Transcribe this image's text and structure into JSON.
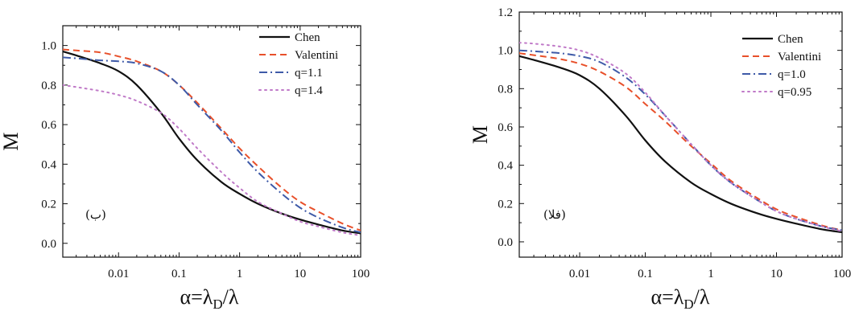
{
  "chart_data": [
    {
      "type": "line",
      "panel_label": "(ب)",
      "xscale": "log",
      "xlim": [
        0.0012,
        100
      ],
      "ylim": [
        -0.07,
        1.1
      ],
      "xticks": [
        {
          "value": 0.01,
          "label": "0.01"
        },
        {
          "value": 0.1,
          "label": "0.1"
        },
        {
          "value": 1,
          "label": "1"
        },
        {
          "value": 10,
          "label": "10"
        },
        {
          "value": 100,
          "label": "100"
        }
      ],
      "yticks": [
        {
          "value": 0.0,
          "label": "0.0"
        },
        {
          "value": 0.2,
          "label": "0.2"
        },
        {
          "value": 0.4,
          "label": "0.4"
        },
        {
          "value": 0.6,
          "label": "0.6"
        },
        {
          "value": 0.8,
          "label": "0.8"
        },
        {
          "value": 1.0,
          "label": "1.0"
        }
      ],
      "ylabel": "M",
      "xlabel": "α=λD/λ",
      "xlabel_main": "α=λ",
      "xlabel_sub": "D",
      "xlabel_tail": "/λ",
      "legend_position": "top-right",
      "series": [
        {
          "name": "Chen",
          "color": "#111111",
          "dash": "solid",
          "x": [
            0.0012,
            0.002,
            0.005,
            0.01,
            0.02,
            0.05,
            0.1,
            0.2,
            0.5,
            1,
            2,
            5,
            10,
            20,
            50,
            100
          ],
          "y": [
            0.97,
            0.95,
            0.91,
            0.87,
            0.8,
            0.66,
            0.53,
            0.42,
            0.31,
            0.25,
            0.2,
            0.15,
            0.12,
            0.095,
            0.065,
            0.05
          ]
        },
        {
          "name": "Valentini",
          "color": "#e8502a",
          "dash": "dashed",
          "x": [
            0.0012,
            0.002,
            0.005,
            0.01,
            0.02,
            0.05,
            0.1,
            0.2,
            0.5,
            1,
            2,
            5,
            10,
            20,
            50,
            100
          ],
          "y": [
            0.98,
            0.975,
            0.965,
            0.945,
            0.92,
            0.87,
            0.8,
            0.71,
            0.58,
            0.48,
            0.39,
            0.28,
            0.21,
            0.16,
            0.1,
            0.065
          ]
        },
        {
          "name": "q=1.1",
          "color": "#3e5aa8",
          "dash": "dashdot",
          "x": [
            0.0012,
            0.002,
            0.005,
            0.01,
            0.02,
            0.05,
            0.1,
            0.2,
            0.5,
            1,
            2,
            5,
            10,
            20,
            50,
            100
          ],
          "y": [
            0.94,
            0.935,
            0.925,
            0.92,
            0.91,
            0.87,
            0.8,
            0.7,
            0.57,
            0.46,
            0.36,
            0.25,
            0.18,
            0.13,
            0.08,
            0.055
          ]
        },
        {
          "name": "q=1.4",
          "color": "#c07ac8",
          "dash": "dotted",
          "x": [
            0.0012,
            0.002,
            0.005,
            0.01,
            0.02,
            0.05,
            0.1,
            0.2,
            0.5,
            1,
            2,
            5,
            10,
            20,
            50,
            100
          ],
          "y": [
            0.8,
            0.79,
            0.77,
            0.75,
            0.72,
            0.66,
            0.58,
            0.48,
            0.36,
            0.28,
            0.21,
            0.15,
            0.11,
            0.085,
            0.055,
            0.04
          ]
        }
      ]
    },
    {
      "type": "line",
      "panel_label": "(الف)",
      "xscale": "log",
      "xlim": [
        0.0012,
        100
      ],
      "ylim": [
        -0.08,
        1.2
      ],
      "xticks": [
        {
          "value": 0.01,
          "label": "0.01"
        },
        {
          "value": 0.1,
          "label": "0.1"
        },
        {
          "value": 1,
          "label": "1"
        },
        {
          "value": 10,
          "label": "10"
        },
        {
          "value": 100,
          "label": "100"
        }
      ],
      "yticks": [
        {
          "value": 0.0,
          "label": "0.0"
        },
        {
          "value": 0.2,
          "label": "0.2"
        },
        {
          "value": 0.4,
          "label": "0.4"
        },
        {
          "value": 0.6,
          "label": "0.6"
        },
        {
          "value": 0.8,
          "label": "0.8"
        },
        {
          "value": 1.0,
          "label": "1.0"
        },
        {
          "value": 1.2,
          "label": "1.2"
        }
      ],
      "ylabel": "M",
      "xlabel": "α=λD/λ",
      "xlabel_main": "α=λ",
      "xlabel_sub": "D",
      "xlabel_tail": "/λ",
      "legend_position": "top-right",
      "series": [
        {
          "name": "Chen",
          "color": "#111111",
          "dash": "solid",
          "x": [
            0.0012,
            0.002,
            0.005,
            0.01,
            0.02,
            0.05,
            0.1,
            0.2,
            0.5,
            1,
            2,
            5,
            10,
            20,
            50,
            100
          ],
          "y": [
            0.97,
            0.95,
            0.91,
            0.87,
            0.8,
            0.66,
            0.53,
            0.42,
            0.31,
            0.25,
            0.2,
            0.15,
            0.12,
            0.095,
            0.065,
            0.05
          ]
        },
        {
          "name": "Valentini",
          "color": "#e8502a",
          "dash": "dashed",
          "x": [
            0.0012,
            0.002,
            0.005,
            0.01,
            0.02,
            0.05,
            0.1,
            0.2,
            0.5,
            1,
            2,
            5,
            10,
            20,
            50,
            100
          ],
          "y": [
            0.985,
            0.975,
            0.955,
            0.93,
            0.89,
            0.81,
            0.72,
            0.63,
            0.5,
            0.41,
            0.32,
            0.23,
            0.17,
            0.13,
            0.085,
            0.06
          ]
        },
        {
          "name": "q=1.0",
          "color": "#3e5aa8",
          "dash": "dashdot",
          "x": [
            0.0012,
            0.002,
            0.005,
            0.01,
            0.02,
            0.05,
            0.1,
            0.2,
            0.5,
            1,
            2,
            5,
            10,
            20,
            50,
            100
          ],
          "y": [
            1.0,
            0.995,
            0.985,
            0.97,
            0.94,
            0.86,
            0.77,
            0.66,
            0.51,
            0.4,
            0.31,
            0.22,
            0.16,
            0.12,
            0.08,
            0.06
          ]
        },
        {
          "name": "q=0.95",
          "color": "#c07ac8",
          "dash": "dotted",
          "x": [
            0.0012,
            0.002,
            0.005,
            0.01,
            0.02,
            0.05,
            0.1,
            0.2,
            0.5,
            1,
            2,
            5,
            10,
            20,
            50,
            100
          ],
          "y": [
            1.04,
            1.035,
            1.02,
            1.0,
            0.96,
            0.88,
            0.78,
            0.66,
            0.51,
            0.4,
            0.31,
            0.22,
            0.16,
            0.12,
            0.08,
            0.055
          ]
        }
      ]
    }
  ]
}
